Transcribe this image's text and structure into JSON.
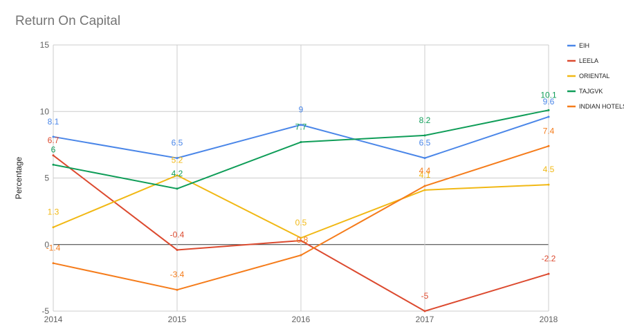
{
  "chart_data": {
    "type": "line",
    "title": "Return On Capital",
    "xlabel": "",
    "ylabel": "Percentage",
    "categories": [
      "2014",
      "2015",
      "2016",
      "2017",
      "2018"
    ],
    "ylim": [
      -5,
      15
    ],
    "yticks": [
      -5,
      0,
      5,
      10,
      15
    ],
    "grid": true,
    "legend_position": "right",
    "series": [
      {
        "name": "EIH",
        "color": "#4a86e8",
        "values": [
          8.1,
          6.5,
          9,
          6.5,
          9.6
        ],
        "labels": [
          "8.1",
          "6.5",
          "9",
          "6.5",
          "9.6"
        ]
      },
      {
        "name": "LEELA",
        "color": "#dc4a2f",
        "values": [
          6.7,
          -0.4,
          0.3,
          -5,
          -2.2
        ],
        "labels": [
          "6.7",
          "-0.4",
          "",
          "-5",
          "-2.2"
        ]
      },
      {
        "name": "ORIENTAL",
        "color": "#f1b814",
        "values": [
          1.3,
          5.2,
          0.5,
          4.1,
          4.5
        ],
        "labels": [
          "1.3",
          "5.2",
          "0.5",
          "4.1",
          "4.5"
        ]
      },
      {
        "name": "TAJGVK",
        "color": "#0f9d58",
        "values": [
          6,
          4.2,
          7.7,
          8.2,
          10.1
        ],
        "labels": [
          "6",
          "4.2",
          "7.7",
          "8.2",
          "10.1"
        ]
      },
      {
        "name": "INDIAN HOTELS",
        "color": "#f57c1b",
        "values": [
          -1.4,
          -3.4,
          -0.8,
          4.4,
          7.4
        ],
        "labels": [
          "-1.4",
          "-3.4",
          "-0.8",
          "4.4",
          "7.4"
        ]
      }
    ]
  }
}
